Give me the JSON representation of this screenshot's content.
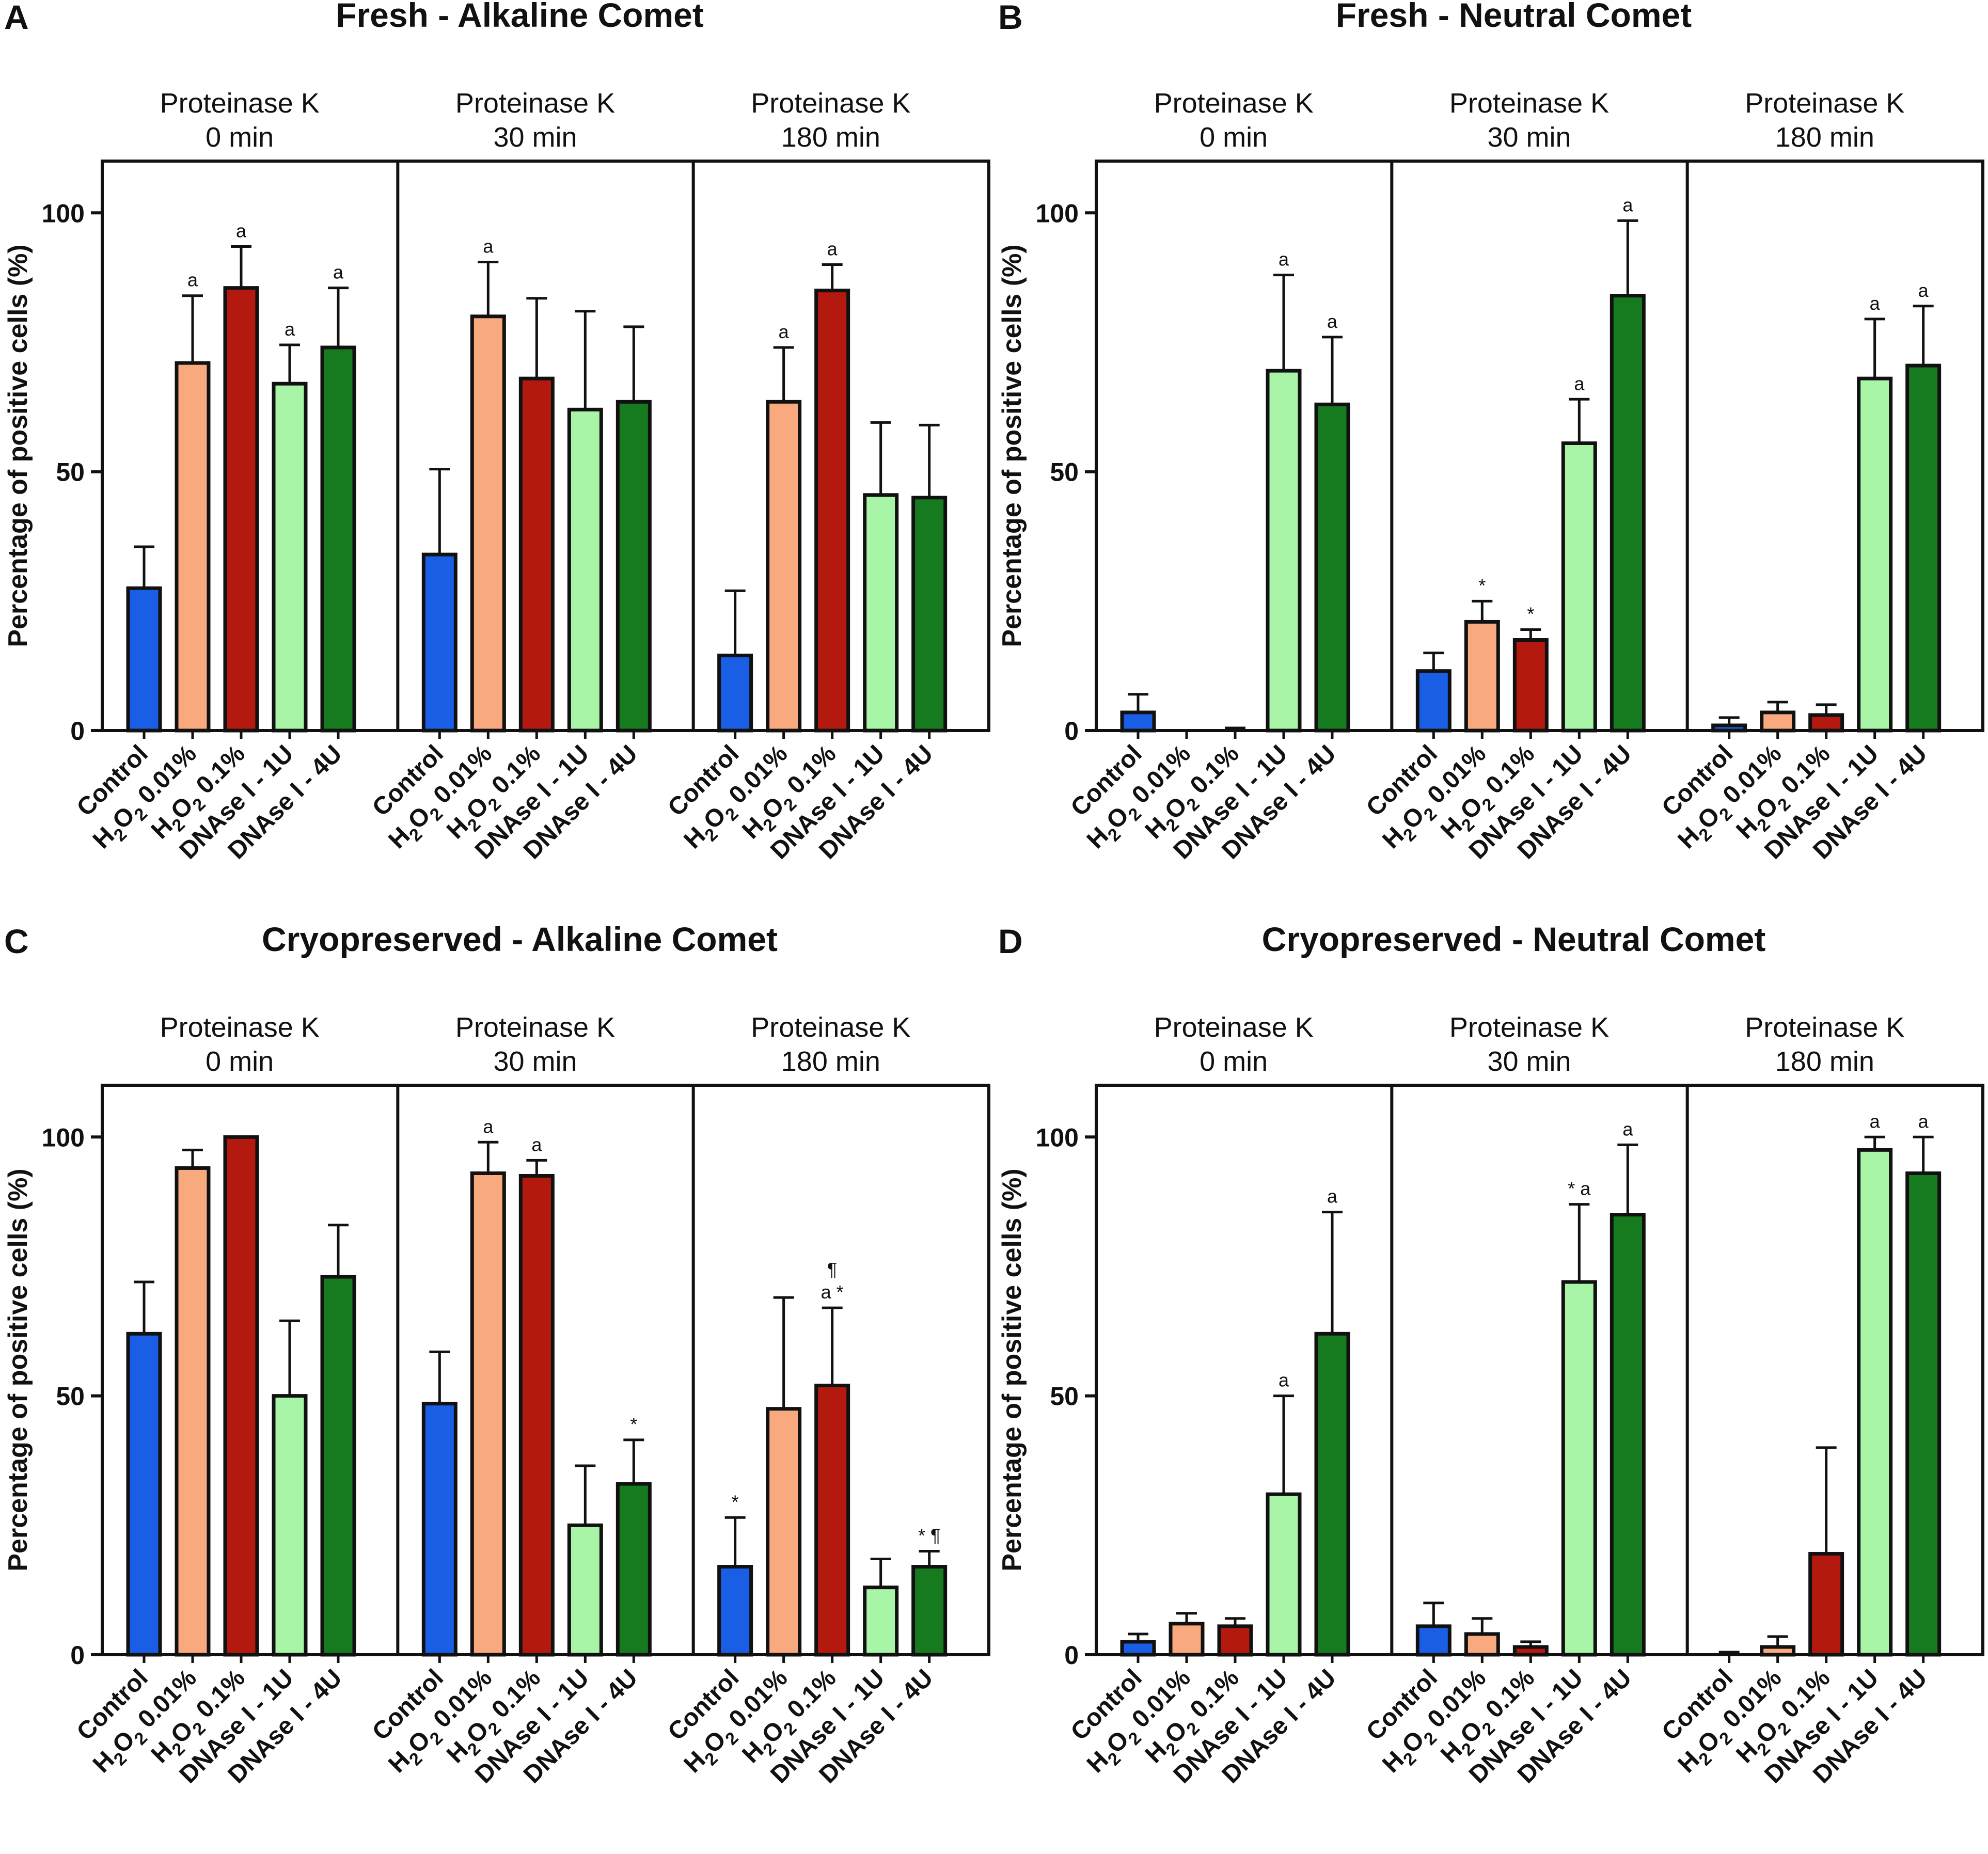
{
  "colors": {
    "control": "#1a5ee6",
    "h2o2_low": "#f8a97e",
    "h2o2_high": "#b3190f",
    "dnase_1u": "#a8f5a8",
    "dnase_4u": "#167a1f",
    "axis": "#111111"
  },
  "shared": {
    "groups": [
      {
        "line1": "Proteinase K",
        "line2": "0 min"
      },
      {
        "line1": "Proteinase K",
        "line2": "30 min"
      },
      {
        "line1": "Proteinase K",
        "line2": "180 min"
      }
    ],
    "categories": [
      {
        "label": "Control",
        "chem_main": "",
        "chem_sub": "",
        "chem_rest": ""
      },
      {
        "label": "",
        "chem_main": "H",
        "chem_sub": "2",
        "chem_mid": "O",
        "chem_sub2": "2",
        "chem_rest": " 0.01%"
      },
      {
        "label": "",
        "chem_main": "H",
        "chem_sub": "2",
        "chem_mid": "O",
        "chem_sub2": "2",
        "chem_rest": " 0.1%"
      },
      {
        "label": "DNAse I - 1U",
        "chem_main": "",
        "chem_sub": "",
        "chem_rest": ""
      },
      {
        "label": "DNAse I - 4U",
        "chem_main": "",
        "chem_sub": "",
        "chem_rest": ""
      }
    ],
    "y_label": "Percentage of positive cells (%)",
    "y_ticks": [
      "0",
      "50",
      "100"
    ],
    "ylim": [
      0,
      110
    ]
  },
  "chart_data": [
    {
      "panel": "A",
      "title": "Fresh - Alkaline Comet",
      "type": "bar",
      "series": [
        {
          "group": "Proteinase K 0 min",
          "values": [
            27.5,
            71,
            85.5,
            67,
            74
          ],
          "errors": [
            8,
            13,
            8,
            7.5,
            11.5
          ],
          "sig": [
            "",
            "a",
            "a",
            "a",
            "a"
          ]
        },
        {
          "group": "Proteinase K 30 min",
          "values": [
            34,
            80,
            68,
            62,
            63.5
          ],
          "errors": [
            16.5,
            10.5,
            15.5,
            19,
            14.5
          ],
          "sig": [
            "",
            "a",
            "",
            "",
            ""
          ]
        },
        {
          "group": "Proteinase K 180 min",
          "values": [
            14.5,
            63.5,
            85,
            45.5,
            45
          ],
          "errors": [
            12.5,
            10.5,
            5,
            14,
            14
          ],
          "sig": [
            "",
            "a",
            "a",
            "",
            ""
          ]
        }
      ]
    },
    {
      "panel": "B",
      "title": "Fresh - Neutral Comet",
      "type": "bar",
      "series": [
        {
          "group": "Proteinase K 0 min",
          "values": [
            3.5,
            0,
            0,
            69.5,
            63
          ],
          "errors": [
            3.5,
            0,
            0.5,
            18.5,
            13
          ],
          "sig": [
            "",
            "",
            "",
            "a",
            "a"
          ]
        },
        {
          "group": "Proteinase K 30 min",
          "values": [
            11.5,
            21,
            17.5,
            55.5,
            84
          ],
          "errors": [
            3.5,
            4,
            2,
            8.5,
            14.5
          ],
          "sig": [
            "",
            "*",
            "*",
            "a",
            "a"
          ]
        },
        {
          "group": "Proteinase K 180 min",
          "values": [
            1,
            3.5,
            3,
            68,
            70.5
          ],
          "errors": [
            1.5,
            2,
            2,
            11.5,
            11.5
          ],
          "sig": [
            "",
            "",
            "",
            "a",
            "a"
          ]
        }
      ]
    },
    {
      "panel": "C",
      "title": "Cryopreserved - Alkaline Comet",
      "type": "bar",
      "series": [
        {
          "group": "Proteinase K 0 min",
          "values": [
            62,
            94,
            100,
            50,
            73
          ],
          "errors": [
            10,
            3.5,
            0,
            14.5,
            10
          ],
          "sig": [
            "",
            "",
            "",
            "",
            ""
          ]
        },
        {
          "group": "Proteinase K 30 min",
          "values": [
            48.5,
            93,
            92.5,
            25,
            33
          ],
          "errors": [
            10,
            6,
            3,
            11.5,
            8.5
          ],
          "sig": [
            "",
            "a",
            "a",
            "",
            "*"
          ]
        },
        {
          "group": "Proteinase K 180 min",
          "values": [
            17,
            47.5,
            52,
            13,
            17
          ],
          "errors": [
            9.5,
            21.5,
            15,
            5.5,
            3
          ],
          "sig": [
            "*",
            "",
            "a *",
            "",
            "* ¶"
          ],
          "sig_top": [
            "",
            "",
            "¶",
            "",
            ""
          ]
        }
      ]
    },
    {
      "panel": "D",
      "title": "Cryopreserved - Neutral Comet",
      "type": "bar",
      "series": [
        {
          "group": "Proteinase K 0 min",
          "values": [
            2.5,
            6,
            5.5,
            31,
            62
          ],
          "errors": [
            1.5,
            2,
            1.5,
            19,
            23.5
          ],
          "sig": [
            "",
            "",
            "",
            "a",
            "a"
          ]
        },
        {
          "group": "Proteinase K 30 min",
          "values": [
            5.5,
            4,
            1.5,
            72,
            85
          ],
          "errors": [
            4.5,
            3,
            1,
            15,
            13.5
          ],
          "sig": [
            "",
            "",
            "",
            "* a",
            "a"
          ]
        },
        {
          "group": "Proteinase K 180 min",
          "values": [
            0,
            1.5,
            19.5,
            97.5,
            93
          ],
          "errors": [
            0.5,
            2,
            20.5,
            2.5,
            7
          ],
          "sig": [
            "",
            "",
            "",
            "a",
            "a"
          ]
        }
      ]
    }
  ]
}
